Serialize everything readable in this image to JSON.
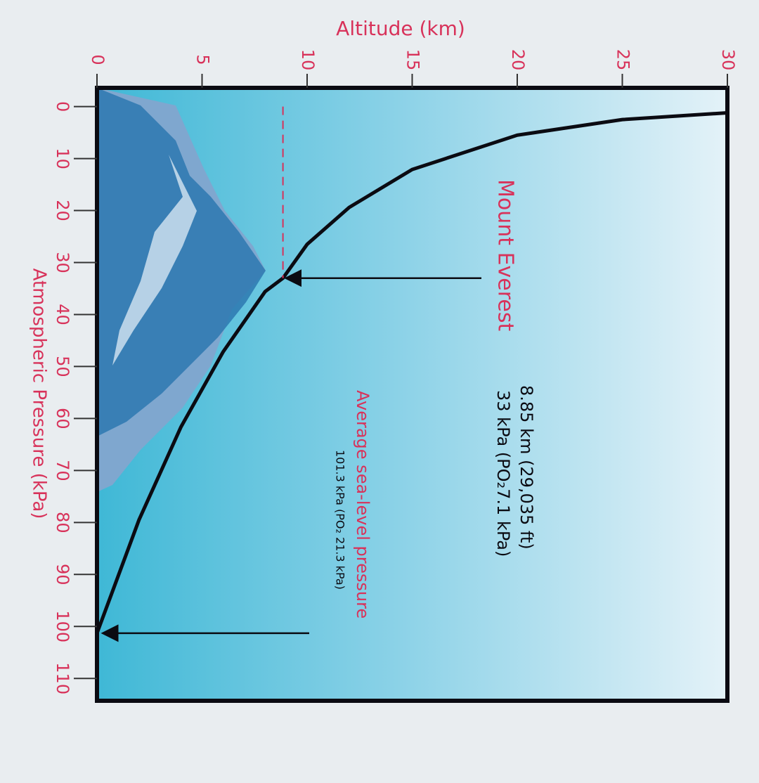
{
  "chart_data": {
    "type": "line",
    "y_label": "Altitude (km)",
    "x_label": "Atmospheric Pressure (kPa)",
    "x": [
      101.3,
      79.5,
      61.6,
      47.2,
      35.6,
      33,
      26.5,
      19.4,
      12.1,
      5.5,
      2.5,
      1.2
    ],
    "series": [
      {
        "color": "#0b0b12",
        "values": [
          0,
          2,
          4,
          6,
          8,
          8.85,
          10,
          12,
          15,
          20,
          25,
          30
        ]
      }
    ],
    "xlim": [
      -3.6,
      114.3
    ],
    "xticks": [
      0,
      10,
      20,
      30,
      40,
      50,
      60,
      70,
      80,
      90,
      100,
      110
    ],
    "ylim": [
      0,
      30
    ],
    "yticks": [
      0,
      5,
      10,
      15,
      20,
      25,
      30
    ],
    "axis_color": "#d8325a",
    "everest": {
      "label": "Mount Everest",
      "details": [
        "8.85 km (29,035 ft)",
        "33 kPa (PO₂7.1 kPa)"
      ],
      "x": 33,
      "y": 8.85
    },
    "sea_level": {
      "label": "Average sea-level pressure",
      "detail": "101.3 kPa (PO₂ 21.3 kPa)",
      "x": 101.3,
      "y": 0
    }
  }
}
